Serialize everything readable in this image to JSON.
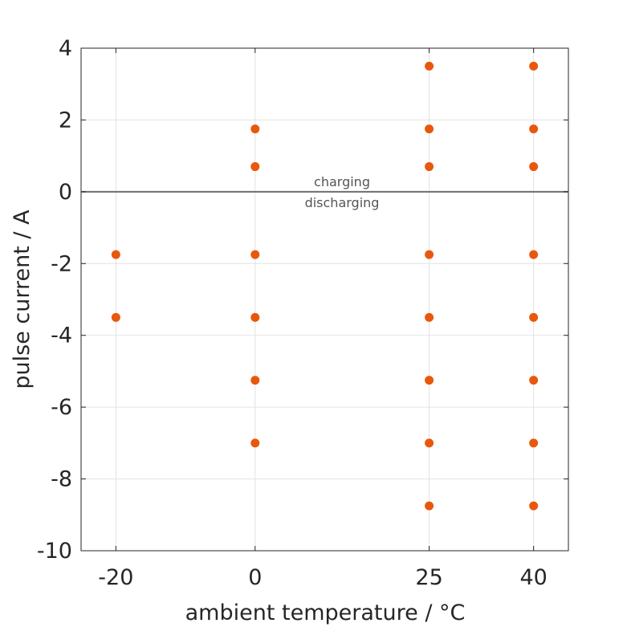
{
  "chart_data": {
    "type": "scatter",
    "xlabel": "ambient temperature / °C",
    "ylabel": "pulse current / A",
    "x_ticks": [
      -20,
      0,
      25,
      40
    ],
    "y_ticks": [
      4,
      2,
      0,
      -2,
      -4,
      -6,
      -8,
      -10
    ],
    "ylim": [
      -10,
      4
    ],
    "xlim": [
      -25,
      45
    ],
    "grid": true,
    "reference_line_y": 0,
    "annotations": {
      "above": "charging",
      "below": "discharging"
    },
    "marker_color": "#e8580c",
    "points": [
      {
        "x": -20,
        "y": -1.75
      },
      {
        "x": -20,
        "y": -3.5
      },
      {
        "x": 0,
        "y": 1.75
      },
      {
        "x": 0,
        "y": 0.7
      },
      {
        "x": 0,
        "y": -1.75
      },
      {
        "x": 0,
        "y": -3.5
      },
      {
        "x": 0,
        "y": -5.25
      },
      {
        "x": 0,
        "y": -7.0
      },
      {
        "x": 25,
        "y": 3.5
      },
      {
        "x": 25,
        "y": 1.75
      },
      {
        "x": 25,
        "y": 0.7
      },
      {
        "x": 25,
        "y": -1.75
      },
      {
        "x": 25,
        "y": -3.5
      },
      {
        "x": 25,
        "y": -5.25
      },
      {
        "x": 25,
        "y": -7.0
      },
      {
        "x": 25,
        "y": -8.75
      },
      {
        "x": 40,
        "y": 3.5
      },
      {
        "x": 40,
        "y": 1.75
      },
      {
        "x": 40,
        "y": 0.7
      },
      {
        "x": 40,
        "y": -1.75
      },
      {
        "x": 40,
        "y": -3.5
      },
      {
        "x": 40,
        "y": -5.25
      },
      {
        "x": 40,
        "y": -7.0
      },
      {
        "x": 40,
        "y": -8.75
      }
    ]
  }
}
